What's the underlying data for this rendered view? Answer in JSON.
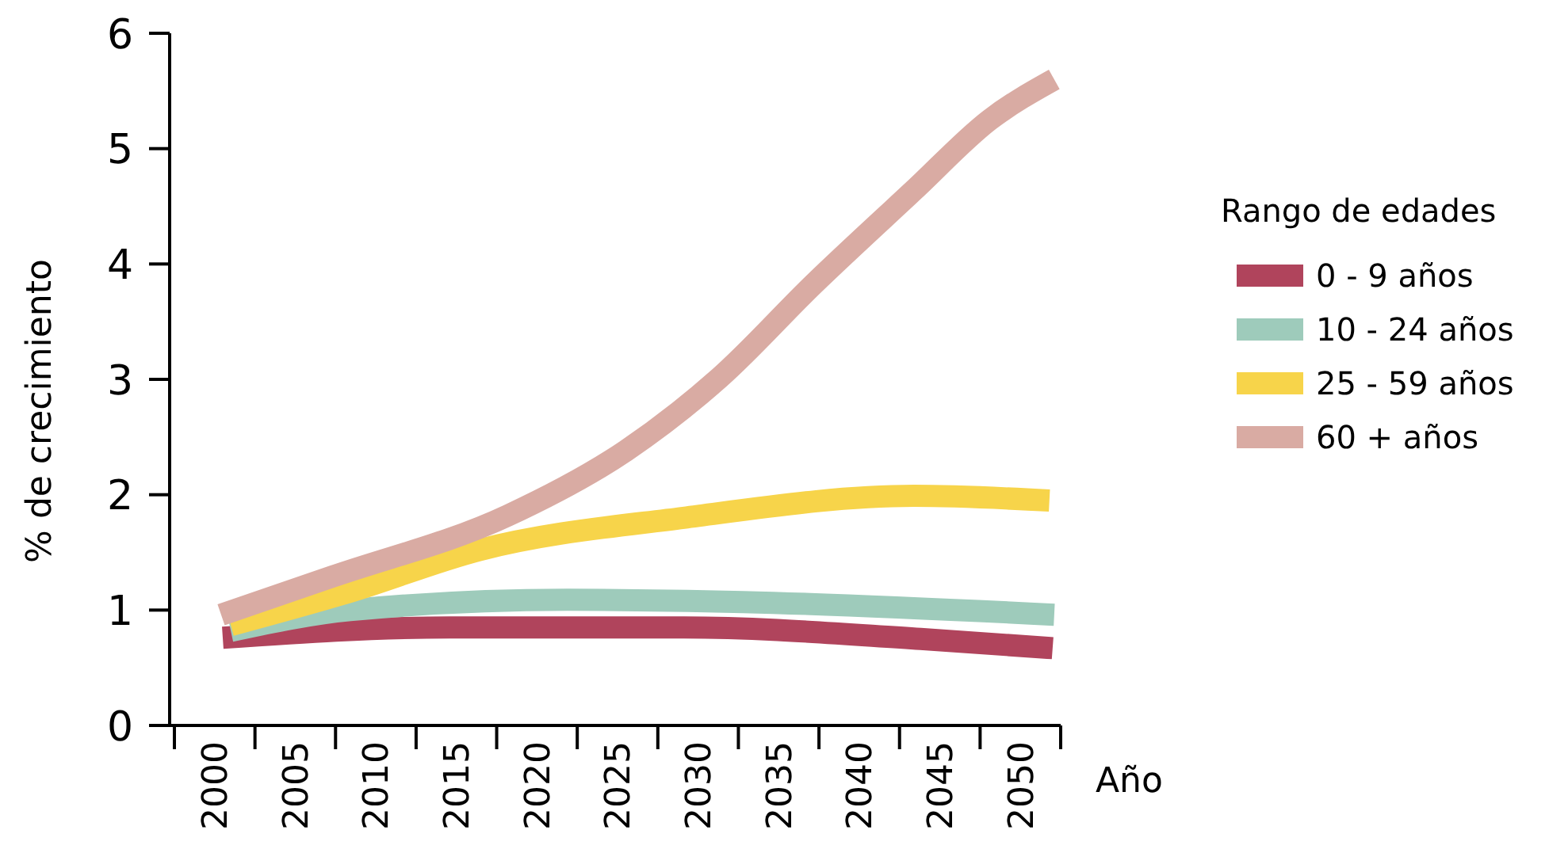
{
  "chart_data": {
    "type": "line",
    "xlabel": "Año",
    "ylabel": "% de crecimiento",
    "legend_title": "Rango de edades",
    "legend": "right",
    "line_style": "solid",
    "marker": "none",
    "grid": false,
    "xlim": [
      1997.5,
      2052.5
    ],
    "xticks": [
      {
        "value": 1997.5,
        "label": null
      },
      2000,
      {
        "value": 2002.5,
        "label": null
      },
      2005,
      {
        "value": 2007.5,
        "label": null
      },
      2010,
      {
        "value": 2012.5,
        "label": null
      },
      2015,
      {
        "value": 2017.5,
        "label": null
      },
      2020,
      {
        "value": 2022.5,
        "label": null
      },
      2025,
      {
        "value": 2027.5,
        "label": null
      },
      2030,
      {
        "value": 2032.5,
        "label": null
      },
      2035,
      {
        "value": 2037.5,
        "label": null
      },
      2040,
      {
        "value": 2042.5,
        "label": null
      },
      2045,
      {
        "value": 2047.5,
        "label": null
      },
      2050,
      {
        "value": 2052.5,
        "label": null
      }
    ],
    "ylim": [
      0,
      6
    ],
    "yticks": [
      0,
      1,
      2,
      3,
      4,
      5,
      6
    ],
    "series": [
      {
        "name": "0 - 9 años",
        "color": "#b0445c",
        "x": [
          2000.5,
          2014.6,
          2029.1,
          2043.8,
          2052
        ],
        "values": [
          0.76,
          0.85,
          0.85,
          0.75,
          0.67
        ]
      },
      {
        "name": "10 - 24 años",
        "color": "#9ecbbb",
        "x": [
          2001,
          2008.4,
          2021.9,
          2032.8,
          2052.1
        ],
        "values": [
          0.82,
          1.0,
          1.09,
          1.07,
          0.96
        ]
      },
      {
        "name": "25 - 59 años",
        "color": "#f7d44a",
        "x": [
          2001,
          2008.4,
          2016.4,
          2029.1,
          2043.4,
          2051.8
        ],
        "values": [
          0.87,
          1.16,
          1.52,
          1.8,
          1.99,
          1.95
        ]
      },
      {
        "name": "60 + años",
        "color": "#d9aba3",
        "x": [
          2000.4,
          2007.3,
          2018.2,
          2025.5,
          2031.3,
          2037.2,
          2043.4,
          2048.1,
          2052.1
        ],
        "values": [
          0.96,
          1.29,
          1.82,
          2.38,
          3.01,
          3.83,
          4.64,
          5.25,
          5.6
        ]
      }
    ]
  }
}
